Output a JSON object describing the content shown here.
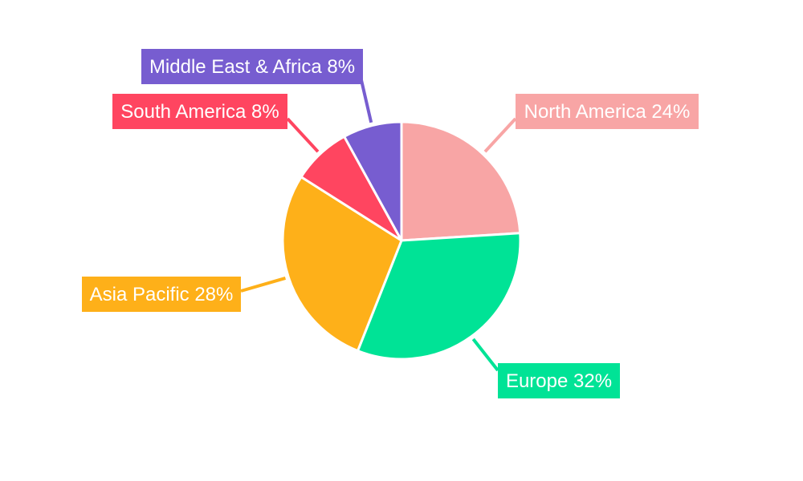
{
  "chart_data": {
    "type": "pie",
    "title": "",
    "start_angle_deg": 0,
    "direction": "clockwise",
    "slices": [
      {
        "label": "North America",
        "value": 24,
        "display": "North America 24%",
        "color": "#f8a5a5"
      },
      {
        "label": "Europe",
        "value": 32,
        "display": "Europe 32%",
        "color": "#00e396"
      },
      {
        "label": "Asia Pacific",
        "value": 28,
        "display": "Asia Pacific 28%",
        "color": "#feb019"
      },
      {
        "label": "South America",
        "value": 8,
        "display": "South America 8%",
        "color": "#ff4560"
      },
      {
        "label": "Middle East & Africa",
        "value": 8,
        "display": "Middle East & Africa 8%",
        "color": "#775dd0"
      }
    ],
    "legend": "none"
  }
}
